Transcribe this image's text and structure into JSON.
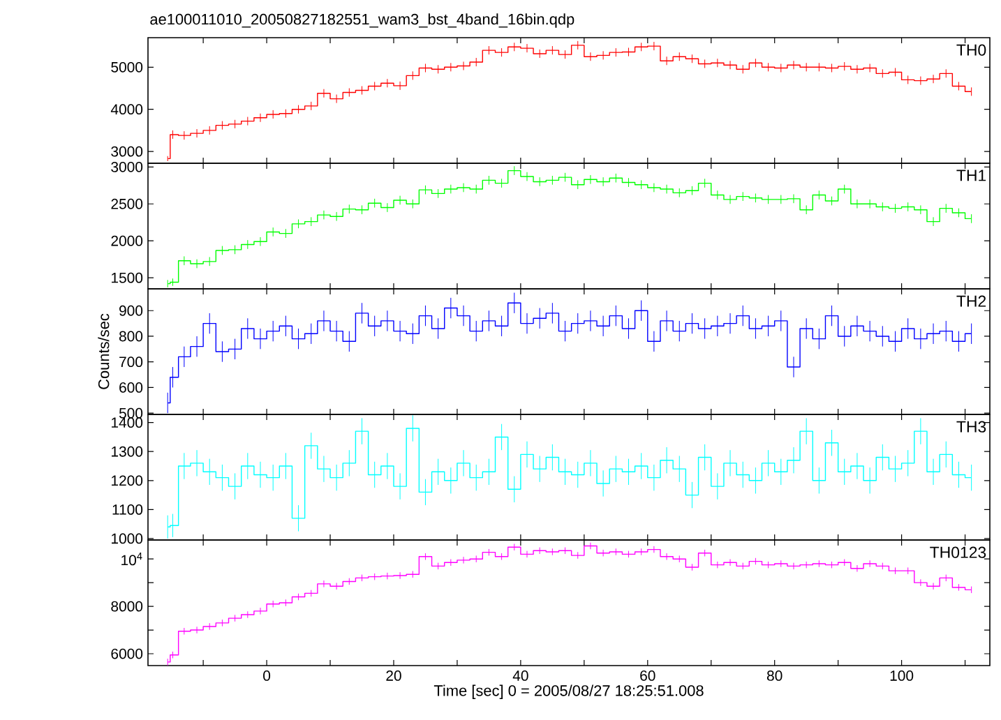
{
  "chart_data": [
    {
      "type": "step",
      "title": "ae100011010_20050827182551_wam3_bst_4band_16bin.qdp",
      "tick_labels": "y",
      "x": [
        -15.6,
        -14.8,
        -13,
        -11,
        -9,
        -7,
        -5,
        -3,
        -1,
        1,
        3,
        5,
        7,
        9,
        11,
        13,
        15,
        17,
        19,
        21,
        23,
        25,
        27,
        29,
        31,
        33,
        35,
        37,
        39,
        41,
        43,
        45,
        47,
        49,
        51,
        53,
        55,
        57,
        59,
        61,
        63,
        65,
        67,
        69,
        71,
        73,
        75,
        77,
        79,
        81,
        83,
        85,
        87,
        89,
        91,
        93,
        95,
        97,
        99,
        101,
        103,
        105,
        107,
        109,
        111
      ],
      "xlim": [
        -18.7,
        113.9
      ],
      "xticks": [
        {
          "value": -10,
          "label": null
        },
        0,
        {
          "value": 10,
          "label": null
        },
        20,
        {
          "value": 30,
          "label": null
        },
        40,
        {
          "value": 50,
          "label": null
        },
        60,
        {
          "value": 70,
          "label": null
        },
        80,
        {
          "value": 90,
          "label": null
        },
        100,
        {
          "value": 110,
          "label": null
        }
      ],
      "ylim": [
        2720,
        5700
      ],
      "yticks": [
        3000,
        4000,
        5000
      ],
      "series": [
        {
          "name": "TH0",
          "color": "#ff0000",
          "values": [
            2830,
            3400,
            3380,
            3430,
            3500,
            3620,
            3650,
            3720,
            3800,
            3880,
            3900,
            4000,
            4080,
            4380,
            4250,
            4400,
            4450,
            4550,
            4620,
            4560,
            4800,
            4980,
            4950,
            5000,
            5030,
            5120,
            5400,
            5350,
            5480,
            5450,
            5320,
            5400,
            5300,
            5520,
            5250,
            5280,
            5350,
            5360,
            5480,
            5500,
            5150,
            5250,
            5200,
            5080,
            5100,
            5050,
            4950,
            5100,
            5000,
            4980,
            5050,
            5000,
            5000,
            4980,
            5020,
            4950,
            4980,
            4850,
            4880,
            4700,
            4680,
            4720,
            4850,
            4550,
            4420
          ],
          "errors": [
            60,
            100,
            100,
            100,
            100,
            100,
            100,
            100,
            100,
            100,
            100,
            100,
            100,
            100,
            100,
            100,
            100,
            100,
            100,
            100,
            100,
            100,
            100,
            100,
            100,
            100,
            100,
            100,
            100,
            100,
            100,
            100,
            100,
            100,
            100,
            100,
            100,
            100,
            100,
            100,
            100,
            100,
            100,
            100,
            100,
            100,
            100,
            100,
            100,
            100,
            100,
            100,
            100,
            100,
            100,
            100,
            100,
            100,
            100,
            100,
            100,
            100,
            100,
            100,
            100
          ]
        }
      ]
    },
    {
      "type": "step",
      "tick_labels": "y",
      "x": [
        -15.6,
        -14.8,
        -13,
        -11,
        -9,
        -7,
        -5,
        -3,
        -1,
        1,
        3,
        5,
        7,
        9,
        11,
        13,
        15,
        17,
        19,
        21,
        23,
        25,
        27,
        29,
        31,
        33,
        35,
        37,
        39,
        41,
        43,
        45,
        47,
        49,
        51,
        53,
        55,
        57,
        59,
        61,
        63,
        65,
        67,
        69,
        71,
        73,
        75,
        77,
        79,
        81,
        83,
        85,
        87,
        89,
        91,
        93,
        95,
        97,
        99,
        101,
        103,
        105,
        107,
        109,
        111
      ],
      "xlim": [
        -18.7,
        113.9
      ],
      "xticks": [
        {
          "value": -10,
          "label": null
        },
        0,
        {
          "value": 10,
          "label": null
        },
        20,
        {
          "value": 30,
          "label": null
        },
        40,
        {
          "value": 50,
          "label": null
        },
        60,
        {
          "value": 70,
          "label": null
        },
        80,
        {
          "value": 90,
          "label": null
        },
        100,
        {
          "value": 110,
          "label": null
        }
      ],
      "ylim": [
        1350,
        3050
      ],
      "yticks": [
        1500,
        2000,
        2500,
        3000
      ],
      "series": [
        {
          "name": "TH1",
          "color": "#00ff00",
          "values": [
            1420,
            1440,
            1730,
            1690,
            1720,
            1870,
            1880,
            1950,
            1990,
            2120,
            2100,
            2230,
            2260,
            2350,
            2330,
            2430,
            2420,
            2510,
            2450,
            2550,
            2500,
            2690,
            2640,
            2700,
            2720,
            2700,
            2820,
            2780,
            2950,
            2870,
            2800,
            2820,
            2860,
            2760,
            2830,
            2800,
            2850,
            2790,
            2760,
            2720,
            2700,
            2650,
            2680,
            2780,
            2620,
            2560,
            2600,
            2580,
            2560,
            2560,
            2570,
            2420,
            2620,
            2540,
            2700,
            2500,
            2500,
            2460,
            2440,
            2460,
            2420,
            2260,
            2440,
            2380,
            2300
          ],
          "errors": [
            50,
            50,
            60,
            60,
            60,
            60,
            60,
            60,
            60,
            60,
            60,
            60,
            60,
            60,
            60,
            60,
            60,
            60,
            60,
            60,
            60,
            60,
            60,
            60,
            60,
            60,
            60,
            60,
            60,
            60,
            60,
            60,
            60,
            60,
            60,
            60,
            60,
            60,
            60,
            60,
            60,
            60,
            60,
            60,
            60,
            60,
            60,
            60,
            60,
            60,
            60,
            60,
            60,
            60,
            60,
            60,
            60,
            60,
            60,
            60,
            60,
            60,
            60,
            60,
            60
          ]
        }
      ]
    },
    {
      "type": "step",
      "tick_labels": "y",
      "ylabel": "Counts/sec",
      "x": [
        -15.6,
        -14.8,
        -13,
        -11,
        -9,
        -7,
        -5,
        -3,
        -1,
        1,
        3,
        5,
        7,
        9,
        11,
        13,
        15,
        17,
        19,
        21,
        23,
        25,
        27,
        29,
        31,
        33,
        35,
        37,
        39,
        41,
        43,
        45,
        47,
        49,
        51,
        53,
        55,
        57,
        59,
        61,
        63,
        65,
        67,
        69,
        71,
        73,
        75,
        77,
        79,
        81,
        83,
        85,
        87,
        89,
        91,
        93,
        95,
        97,
        99,
        101,
        103,
        105,
        107,
        109,
        111
      ],
      "xlim": [
        -18.7,
        113.9
      ],
      "xticks": [
        {
          "value": -10,
          "label": null
        },
        0,
        {
          "value": 10,
          "label": null
        },
        20,
        {
          "value": 30,
          "label": null
        },
        40,
        {
          "value": 50,
          "label": null
        },
        60,
        {
          "value": 70,
          "label": null
        },
        80,
        {
          "value": 90,
          "label": null
        },
        100,
        {
          "value": 110,
          "label": null
        }
      ],
      "ylim": [
        495,
        985
      ],
      "yticks": [
        500,
        600,
        700,
        800,
        900
      ],
      "series": [
        {
          "name": "TH2",
          "color": "#0000ff",
          "values": [
            540,
            640,
            720,
            760,
            850,
            740,
            750,
            830,
            790,
            820,
            840,
            790,
            810,
            860,
            820,
            780,
            890,
            840,
            860,
            820,
            810,
            880,
            830,
            910,
            880,
            820,
            860,
            840,
            930,
            850,
            870,
            890,
            820,
            850,
            860,
            840,
            880,
            830,
            900,
            780,
            860,
            820,
            850,
            830,
            840,
            850,
            880,
            830,
            840,
            860,
            680,
            830,
            790,
            880,
            800,
            840,
            820,
            800,
            780,
            830,
            790,
            810,
            820,
            780,
            810
          ],
          "errors": [
            40,
            40,
            40,
            40,
            40,
            40,
            40,
            40,
            40,
            40,
            40,
            40,
            40,
            40,
            40,
            40,
            40,
            40,
            40,
            40,
            40,
            40,
            40,
            40,
            40,
            40,
            40,
            40,
            40,
            40,
            40,
            40,
            40,
            40,
            40,
            40,
            40,
            40,
            40,
            40,
            40,
            40,
            40,
            40,
            40,
            40,
            40,
            40,
            40,
            40,
            40,
            40,
            40,
            40,
            40,
            40,
            40,
            40,
            40,
            40,
            40,
            40,
            40,
            40,
            40
          ]
        }
      ]
    },
    {
      "type": "step",
      "tick_labels": "y",
      "x": [
        -15.6,
        -14.8,
        -13,
        -11,
        -9,
        -7,
        -5,
        -3,
        -1,
        1,
        3,
        5,
        7,
        9,
        11,
        13,
        15,
        17,
        19,
        21,
        23,
        25,
        27,
        29,
        31,
        33,
        35,
        37,
        39,
        41,
        43,
        45,
        47,
        49,
        51,
        53,
        55,
        57,
        59,
        61,
        63,
        65,
        67,
        69,
        71,
        73,
        75,
        77,
        79,
        81,
        83,
        85,
        87,
        89,
        91,
        93,
        95,
        97,
        99,
        101,
        103,
        105,
        107,
        109,
        111
      ],
      "xlim": [
        -18.7,
        113.9
      ],
      "xticks": [
        {
          "value": -10,
          "label": null
        },
        0,
        {
          "value": 10,
          "label": null
        },
        20,
        {
          "value": 30,
          "label": null
        },
        40,
        {
          "value": 50,
          "label": null
        },
        60,
        {
          "value": 70,
          "label": null
        },
        80,
        {
          "value": 90,
          "label": null
        },
        100,
        {
          "value": 110,
          "label": null
        }
      ],
      "ylim": [
        995,
        1428
      ],
      "yticks": [
        1000,
        1100,
        1200,
        1300,
        1400
      ],
      "series": [
        {
          "name": "TH3",
          "color": "#00ffff",
          "values": [
            1040,
            1045,
            1250,
            1260,
            1230,
            1210,
            1180,
            1250,
            1220,
            1210,
            1250,
            1070,
            1320,
            1240,
            1210,
            1260,
            1370,
            1220,
            1250,
            1180,
            1380,
            1160,
            1230,
            1200,
            1260,
            1210,
            1230,
            1350,
            1170,
            1290,
            1240,
            1280,
            1230,
            1220,
            1260,
            1190,
            1240,
            1230,
            1250,
            1210,
            1270,
            1240,
            1150,
            1280,
            1180,
            1260,
            1220,
            1200,
            1260,
            1230,
            1270,
            1370,
            1200,
            1330,
            1230,
            1250,
            1200,
            1280,
            1240,
            1260,
            1370,
            1230,
            1290,
            1220,
            1210
          ],
          "errors": [
            40,
            40,
            45,
            45,
            45,
            45,
            45,
            45,
            45,
            45,
            45,
            45,
            45,
            45,
            45,
            45,
            45,
            45,
            45,
            45,
            45,
            45,
            45,
            45,
            45,
            45,
            45,
            45,
            45,
            45,
            45,
            45,
            45,
            45,
            45,
            45,
            45,
            45,
            45,
            45,
            45,
            45,
            45,
            45,
            45,
            45,
            45,
            45,
            45,
            45,
            45,
            45,
            45,
            45,
            45,
            45,
            45,
            45,
            45,
            45,
            45,
            45,
            45,
            45,
            45
          ]
        }
      ]
    },
    {
      "type": "step",
      "xlabel": "Time [sec] 0 = 2005/08/27 18:25:51.008",
      "x": [
        -15.6,
        -14.8,
        -13,
        -11,
        -9,
        -7,
        -5,
        -3,
        -1,
        1,
        3,
        5,
        7,
        9,
        11,
        13,
        15,
        17,
        19,
        21,
        23,
        25,
        27,
        29,
        31,
        33,
        35,
        37,
        39,
        41,
        43,
        45,
        47,
        49,
        51,
        53,
        55,
        57,
        59,
        61,
        63,
        65,
        67,
        69,
        71,
        73,
        75,
        77,
        79,
        81,
        83,
        85,
        87,
        89,
        91,
        93,
        95,
        97,
        99,
        101,
        103,
        105,
        107,
        109,
        111
      ],
      "xlim": [
        -18.7,
        113.9
      ],
      "xticks": [
        {
          "value": -10,
          "label": null
        },
        0,
        {
          "value": 10,
          "label": null
        },
        20,
        {
          "value": 30,
          "label": null
        },
        40,
        {
          "value": 50,
          "label": null
        },
        60,
        {
          "value": 70,
          "label": null
        },
        80,
        {
          "value": 90,
          "label": null
        },
        100,
        {
          "value": 110,
          "label": null
        }
      ],
      "ylim": [
        5500,
        10800
      ],
      "yticks": [
        6000,
        {
          "value": 7000,
          "label": null
        },
        8000,
        {
          "value": 9000,
          "label": null
        },
        {
          "value": 10000,
          "label": "10$^{4}$"
        }
      ],
      "series": [
        {
          "name": "TH0123",
          "color": "#ff00ff",
          "values": [
            5650,
            5950,
            6950,
            7000,
            7150,
            7300,
            7500,
            7650,
            7800,
            8100,
            8150,
            8400,
            8550,
            8950,
            8850,
            9050,
            9200,
            9250,
            9280,
            9300,
            9350,
            10100,
            9700,
            9850,
            9950,
            10000,
            10280,
            10100,
            10500,
            10200,
            10350,
            10300,
            10350,
            10150,
            10550,
            10250,
            10300,
            10200,
            10300,
            10400,
            10100,
            10000,
            9650,
            10250,
            9750,
            9850,
            9700,
            9900,
            9750,
            9800,
            9700,
            9750,
            9800,
            9750,
            9850,
            9600,
            9800,
            9700,
            9500,
            9500,
            9000,
            8850,
            9200,
            8800,
            8700
          ],
          "errors": [
            140,
            140,
            140,
            140,
            140,
            140,
            140,
            140,
            140,
            140,
            140,
            140,
            140,
            140,
            140,
            140,
            140,
            140,
            140,
            140,
            140,
            140,
            140,
            140,
            140,
            140,
            140,
            140,
            140,
            140,
            140,
            140,
            140,
            140,
            140,
            140,
            140,
            140,
            140,
            140,
            140,
            140,
            140,
            140,
            140,
            140,
            140,
            140,
            140,
            140,
            140,
            140,
            140,
            140,
            140,
            140,
            140,
            140,
            140,
            140,
            140,
            140,
            140,
            140,
            140
          ]
        }
      ]
    }
  ]
}
